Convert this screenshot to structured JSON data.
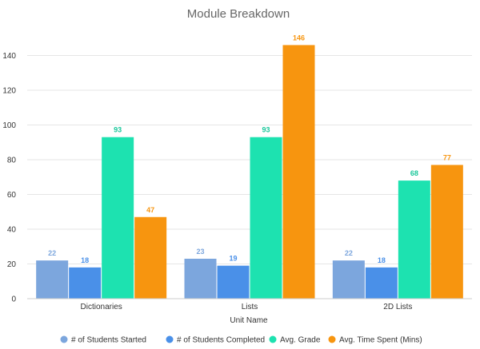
{
  "chart_data": {
    "type": "bar",
    "title": "Module Breakdown",
    "xlabel": "Unit Name",
    "ylabel": "",
    "categories": [
      "Dictionaries",
      "Lists",
      "2D Lists"
    ],
    "ylim": [
      0,
      150
    ],
    "yticks": [
      0,
      20,
      40,
      60,
      80,
      100,
      120,
      140
    ],
    "grid": true,
    "legend_position": "bottom",
    "data_labels": true,
    "series": [
      {
        "name": "# of Students Started",
        "color": "#7ca6dd",
        "label_color": "#7ca6dd",
        "values": [
          22,
          23,
          22
        ]
      },
      {
        "name": "# of Students Completed",
        "color": "#4a90e8",
        "label_color": "#4a90e8",
        "values": [
          18,
          19,
          18
        ]
      },
      {
        "name": "Avg. Grade",
        "color": "#1de2b0",
        "label_color": "#18c79a",
        "values": [
          93,
          93,
          68
        ]
      },
      {
        "name": "Avg. Time Spent (Mins)",
        "color": "#f7950f",
        "label_color": "#f7950f",
        "values": [
          47,
          146,
          77
        ]
      }
    ]
  }
}
